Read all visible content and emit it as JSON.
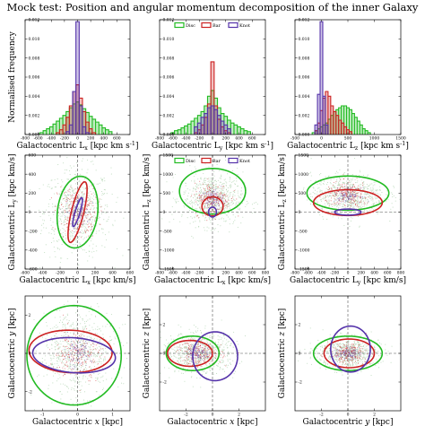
{
  "title": "Mock test: Position and angular momentum decomposition of the inner Galaxy",
  "colors": {
    "Disc": "#22bb22",
    "Bar": "#cc2222",
    "Knot": "#5533aa",
    "scatter_grey": "#b8d8b8"
  },
  "chart_data": [
    {
      "id": "hist-lx",
      "type": "histogram",
      "xlabel": "Galactocentric L$_x$ [kpc km s$^{-1}$]",
      "ylabel": "Normalised frequency",
      "xlim": [
        -800,
        800
      ],
      "ylim": [
        0,
        0.012
      ],
      "xticks": [
        -800,
        -600,
        -400,
        -200,
        0,
        200,
        400,
        600
      ],
      "yticks": [
        0.0,
        0.002,
        0.004,
        0.006,
        0.008,
        0.01,
        0.012
      ],
      "ytick_labels": [
        "0.000",
        "0.002",
        "0.004",
        "0.006",
        "0.008",
        "0.010",
        "0.012"
      ],
      "bin_width": 50,
      "series": [
        {
          "name": "Disc",
          "bins": [
            [
              -550,
              0.0002
            ],
            [
              -500,
              0.0004
            ],
            [
              -450,
              0.0006
            ],
            [
              -400,
              0.0008
            ],
            [
              -350,
              0.0011
            ],
            [
              -300,
              0.0014
            ],
            [
              -250,
              0.0017
            ],
            [
              -200,
              0.002
            ],
            [
              -150,
              0.0024
            ],
            [
              -100,
              0.0028
            ],
            [
              -50,
              0.0032
            ],
            [
              0,
              0.0034
            ],
            [
              50,
              0.0031
            ],
            [
              100,
              0.0027
            ],
            [
              150,
              0.0023
            ],
            [
              200,
              0.0019
            ],
            [
              250,
              0.0016
            ],
            [
              300,
              0.0013
            ],
            [
              350,
              0.001
            ],
            [
              400,
              0.0007
            ],
            [
              450,
              0.0005
            ],
            [
              500,
              0.0003
            ]
          ]
        },
        {
          "name": "Bar",
          "bins": [
            [
              -300,
              0.0002
            ],
            [
              -250,
              0.0005
            ],
            [
              -200,
              0.001
            ],
            [
              -150,
              0.0018
            ],
            [
              -100,
              0.003
            ],
            [
              -50,
              0.0045
            ],
            [
              0,
              0.0052
            ],
            [
              50,
              0.0038
            ],
            [
              100,
              0.0024
            ],
            [
              150,
              0.0013
            ],
            [
              200,
              0.0006
            ],
            [
              250,
              0.0002
            ]
          ]
        },
        {
          "name": "Knot",
          "bins": [
            [
              -150,
              0.0003
            ],
            [
              -100,
              0.001
            ],
            [
              -50,
              0.0045
            ],
            [
              0,
              0.0118
            ],
            [
              50,
              0.003
            ],
            [
              100,
              0.0008
            ],
            [
              150,
              0.0002
            ]
          ]
        }
      ]
    },
    {
      "id": "hist-ly",
      "type": "histogram",
      "xlabel": "Galactocentric L$_y$ [kpc km s$^{-1}$]",
      "xlim": [
        -800,
        800
      ],
      "ylim": [
        0,
        0.012
      ],
      "xticks": [
        -800,
        -600,
        -400,
        -200,
        0,
        200,
        400,
        600
      ],
      "yticks": [
        0.0,
        0.002,
        0.004,
        0.006,
        0.008,
        0.01,
        0.012
      ],
      "ytick_labels": [
        "0.000",
        "0.002",
        "0.004",
        "0.006",
        "0.008",
        "0.010",
        "0.012"
      ],
      "bin_width": 50,
      "legend": {
        "entries": [
          "Disc",
          "Bar",
          "Knot"
        ],
        "placement": "top-center"
      },
      "series": [
        {
          "name": "Disc",
          "bins": [
            [
              -600,
              0.0002
            ],
            [
              -550,
              0.0004
            ],
            [
              -500,
              0.0005
            ],
            [
              -450,
              0.0007
            ],
            [
              -400,
              0.0009
            ],
            [
              -350,
              0.0011
            ],
            [
              -300,
              0.0014
            ],
            [
              -250,
              0.0017
            ],
            [
              -200,
              0.002
            ],
            [
              -150,
              0.0024
            ],
            [
              -100,
              0.003
            ],
            [
              -50,
              0.004
            ],
            [
              0,
              0.0046
            ],
            [
              50,
              0.0038
            ],
            [
              100,
              0.0028
            ],
            [
              150,
              0.0022
            ],
            [
              200,
              0.0019
            ],
            [
              250,
              0.0015
            ],
            [
              300,
              0.0012
            ],
            [
              350,
              0.001
            ],
            [
              400,
              0.0008
            ],
            [
              450,
              0.0006
            ],
            [
              500,
              0.0004
            ],
            [
              550,
              0.0003
            ]
          ]
        },
        {
          "name": "Bar",
          "bins": [
            [
              -250,
              0.0002
            ],
            [
              -200,
              0.0005
            ],
            [
              -150,
              0.001
            ],
            [
              -100,
              0.0018
            ],
            [
              -50,
              0.0032
            ],
            [
              0,
              0.0076
            ],
            [
              50,
              0.003
            ],
            [
              100,
              0.0016
            ],
            [
              150,
              0.0008
            ],
            [
              200,
              0.0004
            ],
            [
              250,
              0.0002
            ]
          ]
        },
        {
          "name": "Knot",
          "bins": [
            [
              -250,
              0.0008
            ],
            [
              -200,
              0.0012
            ],
            [
              -150,
              0.0018
            ],
            [
              -100,
              0.0022
            ],
            [
              -50,
              0.0028
            ],
            [
              0,
              0.003
            ],
            [
              50,
              0.0026
            ],
            [
              100,
              0.002
            ],
            [
              150,
              0.0014
            ],
            [
              200,
              0.001
            ],
            [
              250,
              0.0006
            ]
          ]
        }
      ]
    },
    {
      "id": "hist-lz",
      "type": "histogram",
      "xlabel": "Galactocentric L$_z$ [kpc km s$^{-1}$]",
      "xlim": [
        -500,
        1500
      ],
      "ylim": [
        0,
        0.012
      ],
      "xticks": [
        -500,
        0,
        500,
        1000,
        1500
      ],
      "yticks": [
        0.0,
        0.002,
        0.004,
        0.006,
        0.008,
        0.01,
        0.012
      ],
      "ytick_labels": [
        "0.000",
        "0.002",
        "0.004",
        "0.006",
        "0.008",
        "0.010",
        "0.012"
      ],
      "bin_width": 50,
      "series": [
        {
          "name": "Disc",
          "bins": [
            [
              -150,
              0.0002
            ],
            [
              -100,
              0.0004
            ],
            [
              -50,
              0.0006
            ],
            [
              0,
              0.0008
            ],
            [
              50,
              0.001
            ],
            [
              100,
              0.0012
            ],
            [
              150,
              0.0016
            ],
            [
              200,
              0.002
            ],
            [
              250,
              0.0024
            ],
            [
              300,
              0.0026
            ],
            [
              350,
              0.0028
            ],
            [
              400,
              0.003
            ],
            [
              450,
              0.003
            ],
            [
              500,
              0.0028
            ],
            [
              550,
              0.0026
            ],
            [
              600,
              0.0022
            ],
            [
              650,
              0.0018
            ],
            [
              700,
              0.0014
            ],
            [
              750,
              0.001
            ],
            [
              800,
              0.0006
            ],
            [
              850,
              0.0004
            ],
            [
              900,
              0.0002
            ]
          ]
        },
        {
          "name": "Bar",
          "bins": [
            [
              -100,
              0.0004
            ],
            [
              -50,
              0.0012
            ],
            [
              0,
              0.0025
            ],
            [
              50,
              0.0038
            ],
            [
              100,
              0.0045
            ],
            [
              150,
              0.004
            ],
            [
              200,
              0.003
            ],
            [
              250,
              0.0024
            ],
            [
              300,
              0.002
            ],
            [
              350,
              0.0015
            ],
            [
              400,
              0.0012
            ],
            [
              450,
              0.0008
            ],
            [
              500,
              0.0005
            ],
            [
              550,
              0.0003
            ]
          ]
        },
        {
          "name": "Knot",
          "bins": [
            [
              -100,
              0.001
            ],
            [
              -50,
              0.0042
            ],
            [
              0,
              0.0118
            ],
            [
              50,
              0.004
            ],
            [
              100,
              0.001
            ]
          ]
        }
      ]
    },
    {
      "id": "scatter-lx-ly",
      "type": "scatter",
      "xlabel": "Galactocentric L$_x$ [kpc km/s]",
      "ylabel": "Galactocentric L$_y$ [kpc km/s]",
      "xlim": [
        -600,
        600
      ],
      "ylim": [
        -600,
        600
      ],
      "xticks": [
        -600,
        -400,
        -200,
        0,
        200,
        400,
        600
      ],
      "yticks": [
        -600,
        -400,
        -200,
        0,
        200,
        400,
        600
      ],
      "scatter_cloud": {
        "cx": 0,
        "cy": 0,
        "sx": 190,
        "sy": 230
      },
      "series": [
        {
          "name": "Disc",
          "ellipse": {
            "cx": 0,
            "cy": 0,
            "a": 380,
            "b": 230,
            "angle": 82
          }
        },
        {
          "name": "Bar",
          "ellipse": {
            "cx": 0,
            "cy": 0,
            "a": 330,
            "b": 70,
            "angle": 75
          }
        },
        {
          "name": "Knot",
          "ellipse": {
            "cx": 0,
            "cy": 0,
            "a": 160,
            "b": 28,
            "angle": 72
          }
        }
      ]
    },
    {
      "id": "scatter-lx-lz",
      "type": "scatter",
      "xlabel": "Galactocentric L$_x$ [kpc km/s]",
      "ylabel": "Galactocentric L$_z$ [kpc km/s]",
      "xlim": [
        -800,
        800
      ],
      "ylim": [
        -1500,
        1500
      ],
      "xticks": [
        -800,
        -600,
        -400,
        -200,
        0,
        200,
        400,
        600,
        800
      ],
      "yticks": [
        -1500,
        -1000,
        -500,
        0,
        500,
        1000,
        1500
      ],
      "legend": {
        "entries": [
          "Disc",
          "Bar",
          "Knot"
        ],
        "placement": "top"
      },
      "scatter_cloud": {
        "cx": 0,
        "cy": 350,
        "sx": 230,
        "sy": 350
      },
      "series": [
        {
          "name": "Disc",
          "ellipse": {
            "cx": 0,
            "cy": 550,
            "a": 500,
            "b": 600,
            "angle": 0
          }
        },
        {
          "name": "Bar",
          "ellipse": {
            "cx": 0,
            "cy": 150,
            "a": 160,
            "b": 250,
            "angle": 0
          }
        },
        {
          "name": "Knot",
          "ellipse": {
            "cx": 0,
            "cy": 0,
            "a": 60,
            "b": 130,
            "angle": 0
          }
        }
      ]
    },
    {
      "id": "scatter-ly-lz",
      "type": "scatter",
      "xlabel": "Galactocentric L$_y$ [kpc km/s]",
      "ylabel": "Galactocentric L$_z$ [kpc km/s]",
      "xlim": [
        -800,
        800
      ],
      "ylim": [
        -1500,
        1500
      ],
      "xticks": [
        -800,
        -600,
        -400,
        -200,
        0,
        200,
        400,
        600,
        800
      ],
      "yticks": [
        -1500,
        -1000,
        -500,
        0,
        500,
        1000,
        1500
      ],
      "scatter_cloud": {
        "cx": 0,
        "cy": 450,
        "sx": 280,
        "sy": 270
      },
      "series": [
        {
          "name": "Disc",
          "ellipse": {
            "cx": 0,
            "cy": 500,
            "a": 620,
            "b": 450,
            "angle": 0
          }
        },
        {
          "name": "Bar",
          "ellipse": {
            "cx": 0,
            "cy": 250,
            "a": 520,
            "b": 340,
            "angle": 0
          }
        },
        {
          "name": "Knot",
          "ellipse": {
            "cx": 0,
            "cy": 0,
            "a": 200,
            "b": 80,
            "angle": 0
          }
        }
      ]
    },
    {
      "id": "scatter-x-y",
      "type": "scatter",
      "xlabel": "Galactocentric $x$ [kpc]",
      "ylabel": "Galactocentric $y$ [kpc]",
      "xlim": [
        -1.5,
        1.5
      ],
      "ylim": [
        -3,
        3
      ],
      "xticks": [
        -1,
        0,
        1
      ],
      "yticks": [
        -2,
        0,
        2
      ],
      "scatter_cloud": {
        "cx": 0,
        "cy": 0,
        "sx": 0.55,
        "sy": 1.1
      },
      "series": [
        {
          "name": "Disc",
          "ellipse": {
            "cx": -0.1,
            "cy": -0.1,
            "a": 1.35,
            "b": 2.6,
            "angle": 0
          }
        },
        {
          "name": "Bar",
          "ellipse": {
            "cx": -0.2,
            "cy": 0.1,
            "a": 1.2,
            "b": 1.1,
            "angle": -20
          }
        },
        {
          "name": "Knot",
          "ellipse": {
            "cx": -0.1,
            "cy": -0.1,
            "a": 1.2,
            "b": 0.9,
            "angle": -15
          }
        }
      ]
    },
    {
      "id": "scatter-x-z",
      "type": "scatter",
      "xlabel": "Galactocentric $x$ [kpc]",
      "ylabel": "Galactocentric $z$ [kpc]",
      "xlim": [
        -4,
        4
      ],
      "ylim": [
        -4,
        4
      ],
      "xticks": [
        -2,
        0,
        2
      ],
      "yticks": [
        -2,
        0,
        2
      ],
      "scatter_cloud": {
        "cx": -1,
        "cy": 0,
        "sx": 1.4,
        "sy": 0.7
      },
      "series": [
        {
          "name": "Disc",
          "ellipse": {
            "cx": -1.5,
            "cy": 0,
            "a": 2.0,
            "b": 1.2,
            "angle": 0
          }
        },
        {
          "name": "Bar",
          "ellipse": {
            "cx": -1.7,
            "cy": 0,
            "a": 1.7,
            "b": 0.9,
            "angle": 0
          }
        },
        {
          "name": "Knot",
          "ellipse": {
            "cx": 0.2,
            "cy": -0.2,
            "a": 1.7,
            "b": 1.7,
            "angle": 0
          }
        }
      ]
    },
    {
      "id": "scatter-y-z",
      "type": "scatter",
      "xlabel": "Galactocentric $y$ [kpc]",
      "ylabel": "Galactocentric $z$ [kpc]",
      "xlim": [
        -4,
        4
      ],
      "ylim": [
        -4,
        4
      ],
      "xticks": [
        -2,
        0,
        2
      ],
      "yticks": [
        -2,
        0,
        2
      ],
      "scatter_cloud": {
        "cx": 0,
        "cy": 0,
        "sx": 1.2,
        "sy": 0.55
      },
      "series": [
        {
          "name": "Disc",
          "ellipse": {
            "cx": 0,
            "cy": 0,
            "a": 2.6,
            "b": 1.2,
            "angle": 0
          }
        },
        {
          "name": "Bar",
          "ellipse": {
            "cx": 0.1,
            "cy": 0,
            "a": 1.9,
            "b": 1.0,
            "angle": 0
          }
        },
        {
          "name": "Knot",
          "ellipse": {
            "cx": 0.2,
            "cy": 0.3,
            "a": 1.5,
            "b": 1.6,
            "angle": 0
          }
        }
      ]
    }
  ]
}
